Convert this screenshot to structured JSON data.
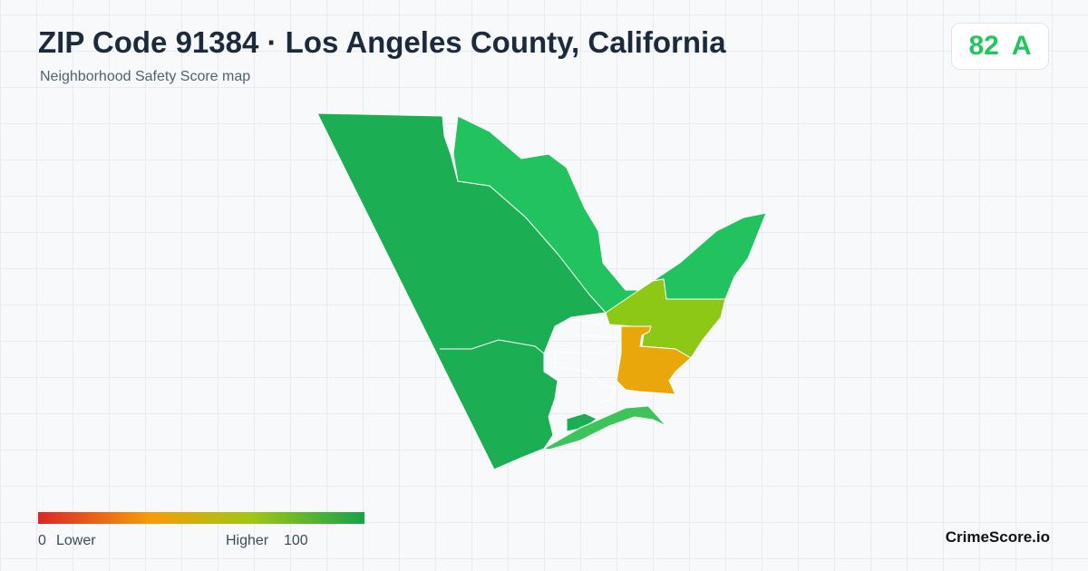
{
  "header": {
    "title": "ZIP Code 91384 · Los Angeles County, California",
    "subtitle": "Neighborhood Safety Score map"
  },
  "score": {
    "value": 82,
    "grade": "A"
  },
  "legend": {
    "min": 0,
    "min_label": "Lower",
    "max_label": "Higher",
    "max": 100
  },
  "brand": "CrimeScore.io"
}
